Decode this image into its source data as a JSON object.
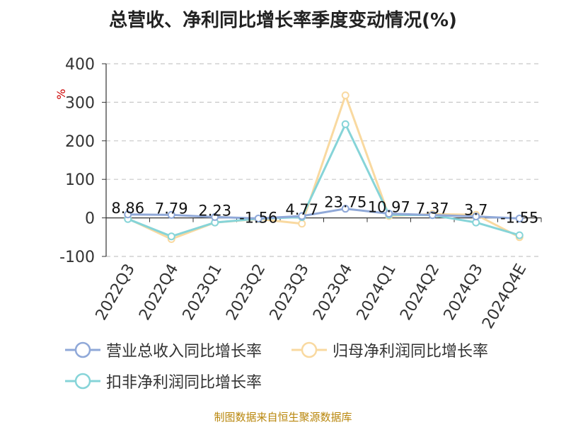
{
  "title": "总营收、净利同比增长率季度变动情况(%)",
  "source": "制图数据来自恒生聚源数据库",
  "chart_data": {
    "type": "line",
    "title": "总营收、净利同比增长率季度变动情况(%)",
    "ylabel": "%",
    "ylim": [
      -100,
      400
    ],
    "yticks": [
      -100,
      0,
      100,
      200,
      300,
      400
    ],
    "grid": true,
    "legend_position": "bottom",
    "categories": [
      "2022Q3",
      "2022Q4",
      "2023Q1",
      "2023Q2",
      "2023Q3",
      "2023Q4",
      "2024Q1",
      "2024Q2",
      "2024Q3",
      "2024Q4E"
    ],
    "series": [
      {
        "name": "营业总收入同比增长率",
        "color": "#8fa8d8",
        "values": [
          8.86,
          7.79,
          2.23,
          -1.56,
          4.77,
          23.75,
          10.97,
          7.37,
          3.7,
          -1.55
        ],
        "labels": [
          "8.86",
          "7.79",
          "2.23",
          "-1.56",
          "4.77",
          "23.75",
          "10.97",
          "7.37",
          "3.7",
          "-1.55"
        ]
      },
      {
        "name": "归母净利润同比增长率",
        "color": "#f9d9a0",
        "values": [
          -2,
          -55,
          -12,
          -3,
          -15,
          318,
          5,
          10,
          8,
          -50
        ]
      },
      {
        "name": "扣非净利润同比增长率",
        "color": "#86d4d8",
        "values": [
          -3,
          -48,
          -12,
          -2,
          2,
          243,
          8,
          7,
          -12,
          -45
        ]
      }
    ]
  }
}
